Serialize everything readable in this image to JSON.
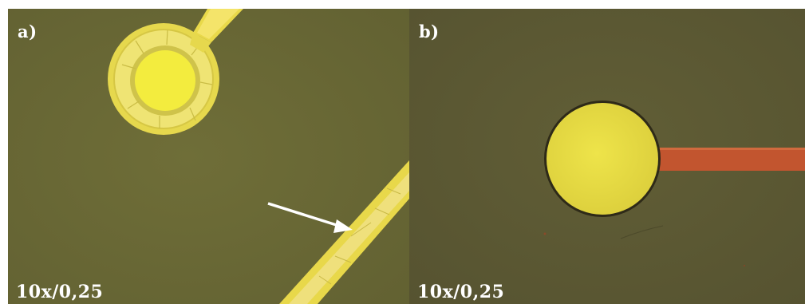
{
  "panels": [
    {
      "id": "a",
      "label": "a)",
      "magnification": "10x/0,25",
      "background_color": "#6b6a35",
      "feature_color": "#f2e04f"
    },
    {
      "id": "b",
      "label": "b)",
      "magnification": "10x/0,25",
      "background_color": "#5e5b33",
      "feature_color": "#ece13f",
      "trace_color": "#c2552f"
    }
  ]
}
